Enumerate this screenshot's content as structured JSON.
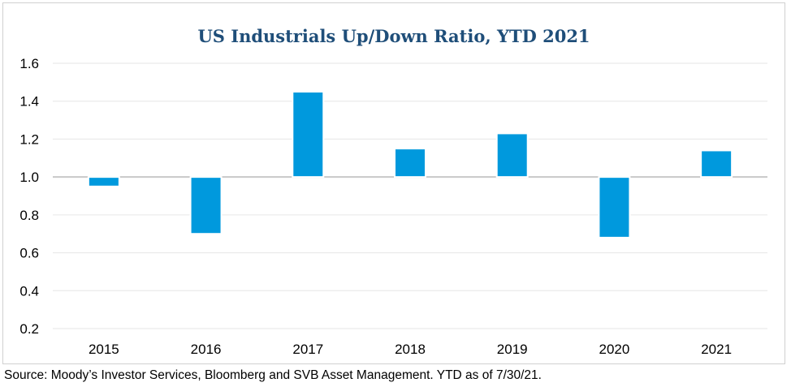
{
  "chart_data": {
    "type": "bar",
    "title": "US Industrials Up/Down Ratio, YTD 2021",
    "categories": [
      "2015",
      "2016",
      "2017",
      "2018",
      "2019",
      "2020",
      "2021"
    ],
    "values": [
      0.95,
      0.7,
      1.45,
      1.15,
      1.23,
      0.68,
      1.14
    ],
    "baseline": 1.0,
    "ylim": [
      0.2,
      1.6
    ],
    "yticks": [
      "0.2",
      "0.4",
      "0.6",
      "0.8",
      "1.0",
      "1.2",
      "1.4",
      "1.6"
    ],
    "xlabel": "",
    "ylabel": "",
    "grid": true,
    "legend": "none",
    "bar_color": "#0099dd"
  },
  "source_note": "Source: Moody’s Investor Services, Bloomberg and SVB Asset Management. YTD as of 7/30/21."
}
